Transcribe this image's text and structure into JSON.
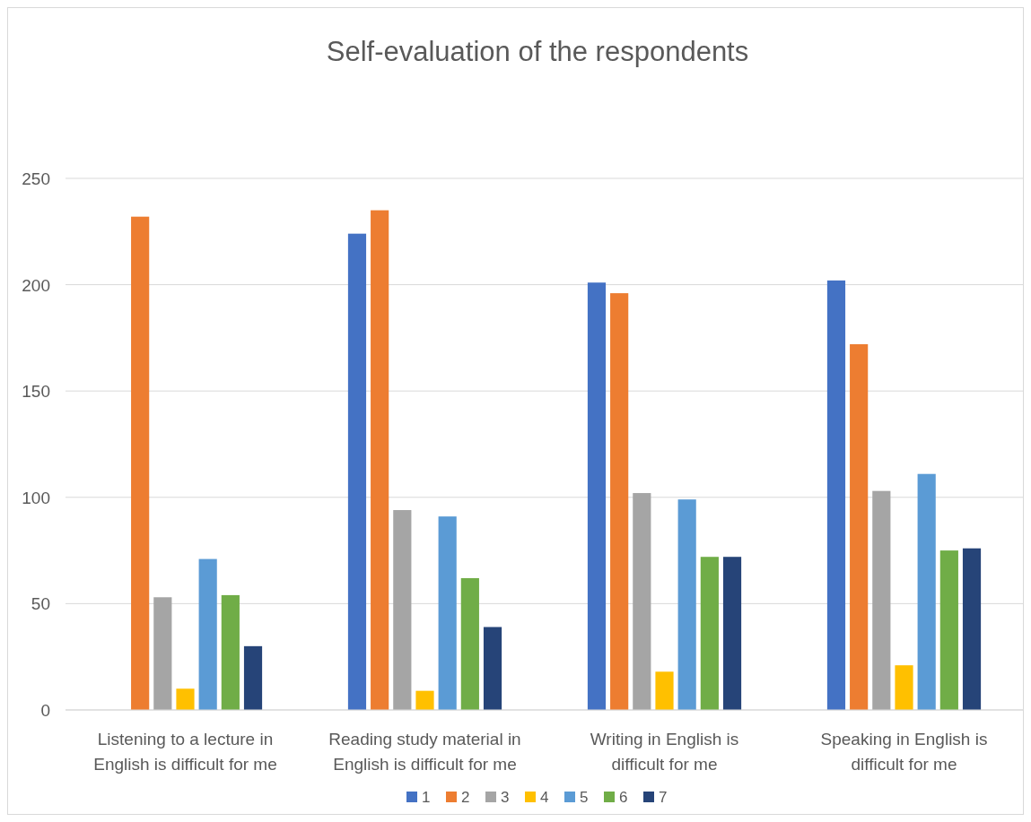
{
  "chart_data": {
    "type": "bar",
    "title": "Self-evaluation of the respondents",
    "categories": [
      "Listening to a lecture in English is difficult for me",
      "Reading study material in English is difficult for me",
      "Writing in English is difficult for me",
      "Speaking in English is difficult for me"
    ],
    "series": [
      {
        "name": "1",
        "color": "#4472c4",
        "values": [
          null,
          224,
          201,
          202
        ]
      },
      {
        "name": "2",
        "color": "#ed7d31",
        "values": [
          232,
          235,
          196,
          172
        ]
      },
      {
        "name": "3",
        "color": "#a5a5a5",
        "values": [
          53,
          94,
          102,
          103
        ]
      },
      {
        "name": "4",
        "color": "#ffc000",
        "values": [
          10,
          9,
          18,
          21
        ]
      },
      {
        "name": "5",
        "color": "#5b9bd5",
        "values": [
          71,
          91,
          99,
          111
        ]
      },
      {
        "name": "6",
        "color": "#70ad47",
        "values": [
          54,
          62,
          72,
          75
        ]
      },
      {
        "name": "7",
        "color": "#264478",
        "values": [
          30,
          39,
          72,
          76
        ]
      }
    ],
    "ylim": [
      0,
      250
    ],
    "yticks": [
      0,
      50,
      100,
      150,
      200,
      250
    ],
    "grid": "y",
    "legend": "bottom"
  }
}
